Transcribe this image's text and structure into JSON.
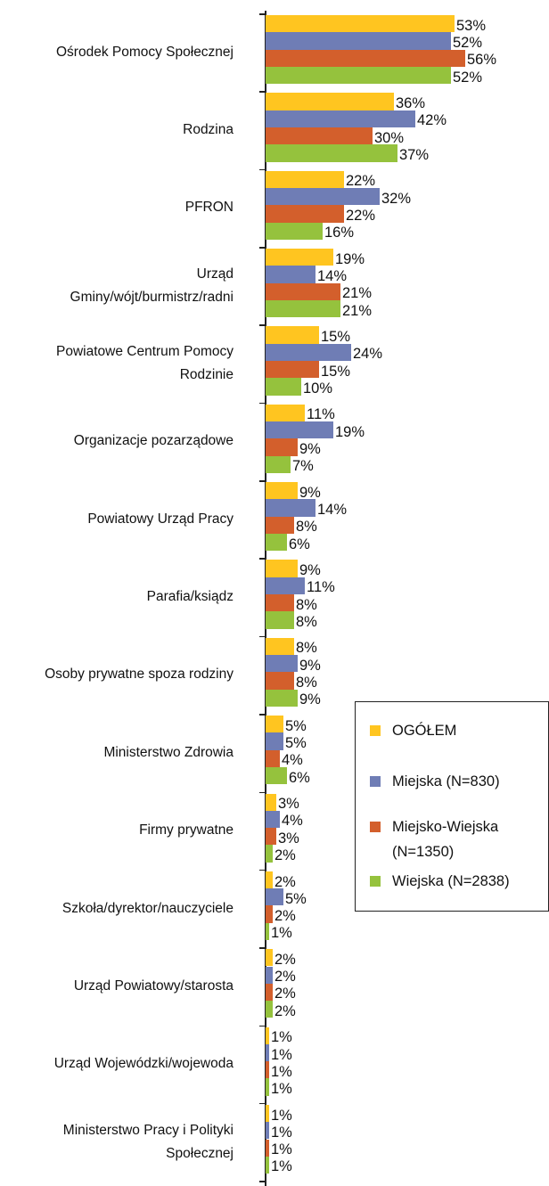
{
  "chart_data": {
    "type": "barh",
    "categories": [
      "Ośrodek Pomocy Społecznej",
      "Rodzina",
      "PFRON",
      "Urząd\nGminy/wójt/burmistrz/radni",
      "Powiatowe Centrum Pomocy\nRodzinie",
      "Organizacje pozarządowe",
      "Powiatowy Urząd Pracy",
      "Parafia/ksiądz",
      "Osoby prywatne spoza rodziny",
      "Ministerstwo Zdrowia",
      "Firmy prywatne",
      "Szkoła/dyrektor/nauczyciele",
      "Urząd Powiatowy/starosta",
      "Urząd Wojewódzki/wojewoda",
      "Ministerstwo Pracy i Polityki\nSpołecznej"
    ],
    "series": [
      {
        "name": "OGÓŁEM",
        "color": "#FFC520",
        "values": [
          53,
          36,
          22,
          19,
          15,
          11,
          9,
          9,
          8,
          5,
          3,
          2,
          2,
          1,
          1
        ],
        "value_labels": [
          "53%",
          "36%",
          "22%",
          "19%",
          "15%",
          "11%",
          "9%",
          "9%",
          "8%",
          "5%",
          "3%",
          "2%",
          "2%",
          "1%",
          "1%"
        ]
      },
      {
        "name": "Miejska (N=830)",
        "color": "#6F7DB5",
        "values": [
          52,
          42,
          32,
          14,
          24,
          19,
          14,
          11,
          9,
          5,
          4,
          5,
          2,
          1,
          1
        ],
        "value_labels": [
          "52%",
          "42%",
          "32%",
          "14%",
          "24%",
          "19%",
          "14%",
          "11%",
          "9%",
          "5%",
          "4%",
          "5%",
          "2%",
          "1%",
          "1%"
        ]
      },
      {
        "name": "Miejsko-Wiejska (N=1350)",
        "color": "#D35F2C",
        "values": [
          56,
          30,
          22,
          21,
          15,
          9,
          8,
          8,
          8,
          4,
          3,
          2,
          2,
          1,
          1
        ],
        "value_labels": [
          "56%",
          "30%",
          "22%",
          "21%",
          "15%",
          "9%",
          "8%",
          "8%",
          "8%",
          "4%",
          "3%",
          "2%",
          "2%",
          "1%",
          "1%"
        ]
      },
      {
        "name": "Wiejska (N=2838)",
        "color": "#95C23D",
        "values": [
          52,
          37,
          16,
          21,
          10,
          7,
          6,
          8,
          9,
          6,
          2,
          1,
          2,
          1,
          1
        ],
        "value_labels": [
          "52%",
          "37%",
          "16%",
          "21%",
          "10%",
          "7%",
          "6%",
          "8%",
          "9%",
          "6%",
          "2%",
          "1%",
          "2%",
          "1%",
          "1%"
        ]
      }
    ],
    "xlim": [
      0,
      60
    ],
    "legend": "right"
  }
}
